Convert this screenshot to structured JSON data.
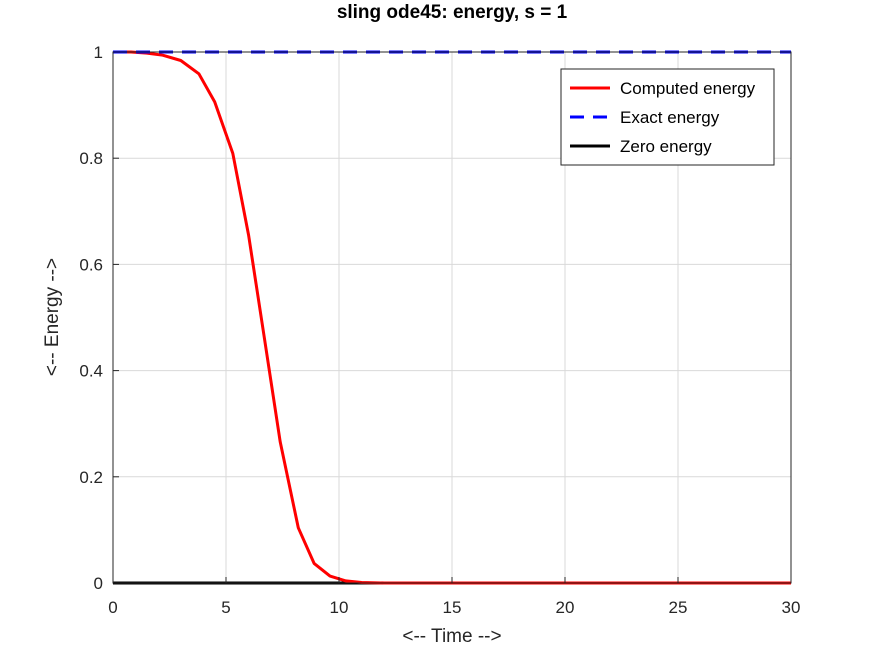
{
  "chart_data": {
    "type": "line",
    "title": "sling ode45: energy, s = 1",
    "xlabel": "<-- Time -->",
    "ylabel": "<-- Energy -->",
    "xlim": [
      0,
      30
    ],
    "ylim": [
      0,
      1
    ],
    "xticks": [
      "0",
      "5",
      "10",
      "15",
      "20",
      "25",
      "30"
    ],
    "yticks": [
      "0",
      "0.2",
      "0.4",
      "0.6",
      "0.8",
      "1"
    ],
    "grid": true,
    "legend_position": "top-right",
    "series": [
      {
        "name": "Computed energy",
        "color": "#ff0000",
        "style": "solid",
        "x": [
          0,
          0.8,
          1.5,
          2.2,
          3.0,
          3.8,
          4.5,
          5.3,
          6.0,
          6.7,
          7.4,
          8.2,
          8.9,
          9.6,
          10.3,
          11.0,
          12,
          14,
          16,
          18,
          20,
          22,
          24,
          26,
          28,
          30
        ],
        "y": [
          1.0,
          1.0,
          0.998,
          0.994,
          0.984,
          0.959,
          0.906,
          0.809,
          0.655,
          0.461,
          0.266,
          0.104,
          0.037,
          0.013,
          0.004,
          0.001,
          0.0,
          0.0,
          0.0,
          0.0,
          0.0,
          0.0,
          0.0,
          0.0,
          0.0,
          0.0
        ]
      },
      {
        "name": "Exact energy",
        "color": "#0000ff",
        "style": "dashed",
        "x": [
          0,
          30
        ],
        "y": [
          1,
          1
        ]
      },
      {
        "name": "Zero energy",
        "color": "#000000",
        "style": "solid",
        "x": [
          0,
          30
        ],
        "y": [
          0,
          0
        ]
      }
    ]
  }
}
